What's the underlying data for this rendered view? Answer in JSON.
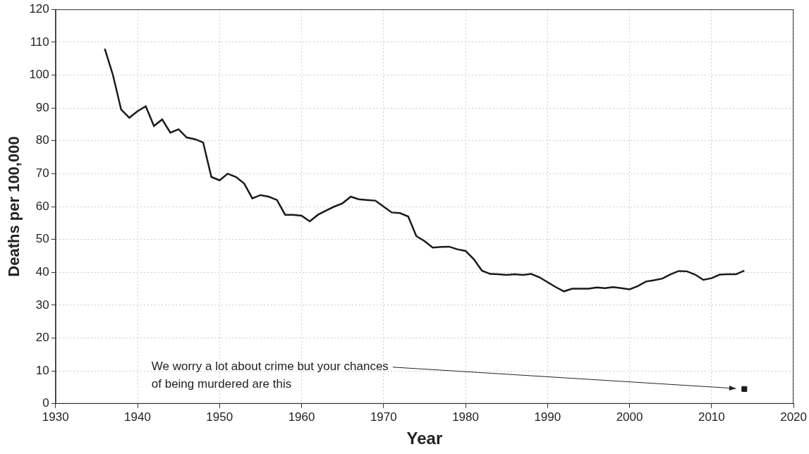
{
  "chart_data": {
    "type": "line",
    "x_label": "Year",
    "y_label": "Deaths per 100,000",
    "x": [
      1936,
      1937,
      1938,
      1939,
      1940,
      1941,
      1942,
      1943,
      1944,
      1945,
      1946,
      1947,
      1948,
      1949,
      1950,
      1951,
      1952,
      1953,
      1954,
      1955,
      1956,
      1957,
      1958,
      1959,
      1960,
      1961,
      1962,
      1963,
      1964,
      1965,
      1966,
      1967,
      1968,
      1969,
      1970,
      1971,
      1972,
      1973,
      1974,
      1975,
      1976,
      1977,
      1978,
      1979,
      1980,
      1981,
      1982,
      1983,
      1984,
      1985,
      1986,
      1987,
      1988,
      1989,
      1990,
      1991,
      1992,
      1993,
      1994,
      1995,
      1996,
      1997,
      1998,
      1999,
      2000,
      2001,
      2002,
      2003,
      2004,
      2005,
      2006,
      2007,
      2008,
      2009,
      2010,
      2011,
      2012,
      2013,
      2014
    ],
    "values": [
      108,
      100,
      89.5,
      87,
      89,
      90.5,
      84.5,
      86.5,
      82.5,
      83.5,
      81,
      80.5,
      79.5,
      69,
      68,
      70,
      69,
      67,
      62.5,
      63.5,
      63,
      62,
      57.5,
      57.5,
      57.2,
      55.5,
      57.5,
      58.8,
      60,
      61,
      63,
      62.2,
      62,
      61.8,
      60,
      58.2,
      58,
      57,
      51,
      49.5,
      47.5,
      47.7,
      47.8,
      47,
      46.5,
      44,
      40.5,
      39.5,
      39.4,
      39.2,
      39.4,
      39.2,
      39.5,
      38.5,
      37,
      35.5,
      34.2,
      35,
      35,
      35,
      35.4,
      35.2,
      35.5,
      35.2,
      34.8,
      35.8,
      37.2,
      37.6,
      38.1,
      39.4,
      40.4,
      40.3,
      39.3,
      37.7,
      38.2,
      39.3,
      39.4,
      39.4,
      40.5
    ],
    "color": "#1a1a1a",
    "annotation": {
      "text": [
        "We worry a lot about crime but your chances",
        "of being murdered are this"
      ],
      "x": 2014,
      "y": 4.5,
      "marker": "square",
      "color": "#1a1a1a"
    },
    "xlim": [
      1930,
      2020
    ],
    "xticks": [
      1930,
      1940,
      1950,
      1960,
      1970,
      1980,
      1990,
      2000,
      2010,
      2020
    ],
    "ylim": [
      0,
      120
    ],
    "yticks": [
      0,
      10,
      20,
      30,
      40,
      50,
      60,
      70,
      80,
      90,
      100,
      110,
      120
    ],
    "grid": true
  }
}
